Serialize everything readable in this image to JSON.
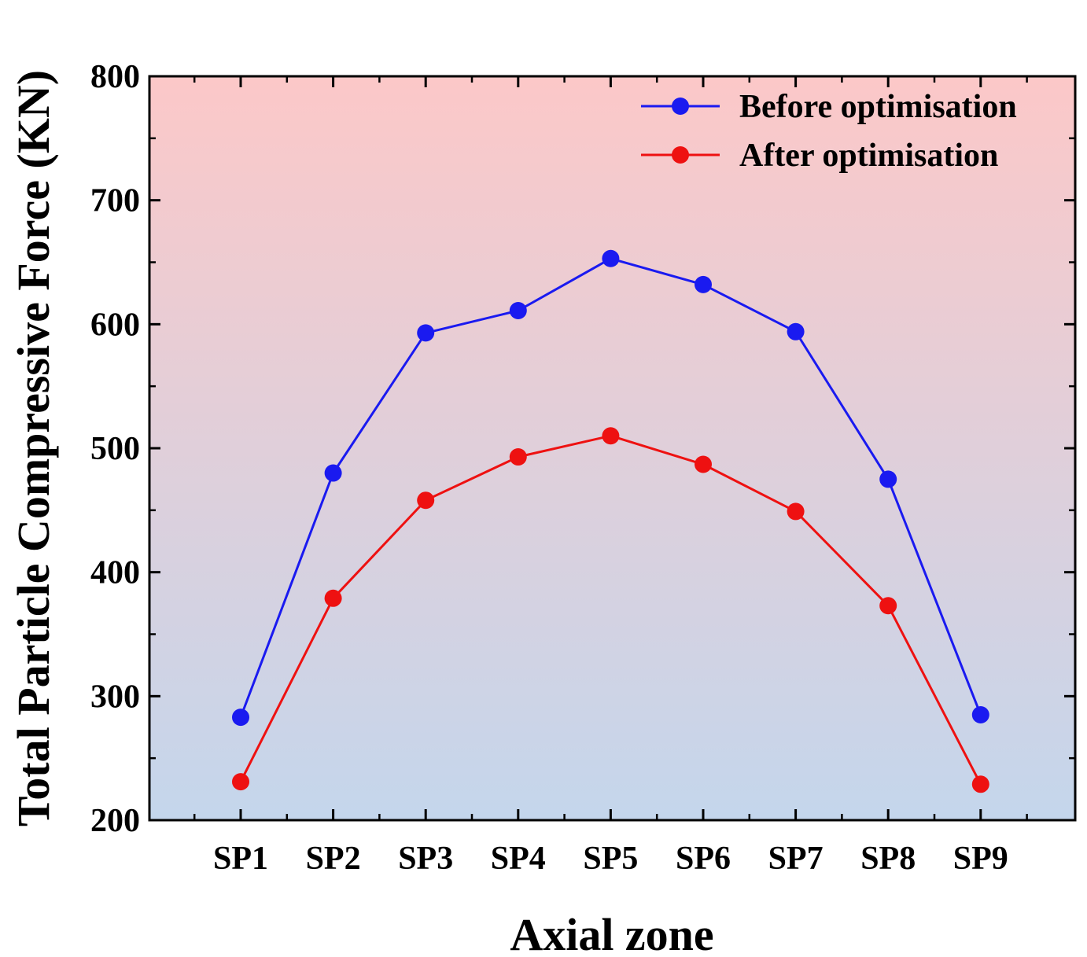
{
  "chart_data": {
    "type": "line",
    "title": "",
    "xlabel": "Axial zone",
    "ylabel": "Total Particle Compressive Force (KN)",
    "categories": [
      "SP1",
      "SP2",
      "SP3",
      "SP4",
      "SP5",
      "SP6",
      "SP7",
      "SP8",
      "SP9"
    ],
    "ylim": [
      200,
      800
    ],
    "yticks": [
      200,
      300,
      400,
      500,
      600,
      700,
      800
    ],
    "legend_position": "top-right",
    "grid": false,
    "background_gradient": [
      "#fcc8c8",
      "#c4d6ec"
    ],
    "series": [
      {
        "name": "Before optimisation",
        "color": "#1a1af0",
        "values": [
          283,
          480,
          593,
          611,
          653,
          632,
          594,
          475,
          285
        ]
      },
      {
        "name": "After optimisation",
        "color": "#ee1111",
        "values": [
          231,
          379,
          458,
          493,
          510,
          487,
          449,
          373,
          229
        ]
      }
    ]
  }
}
